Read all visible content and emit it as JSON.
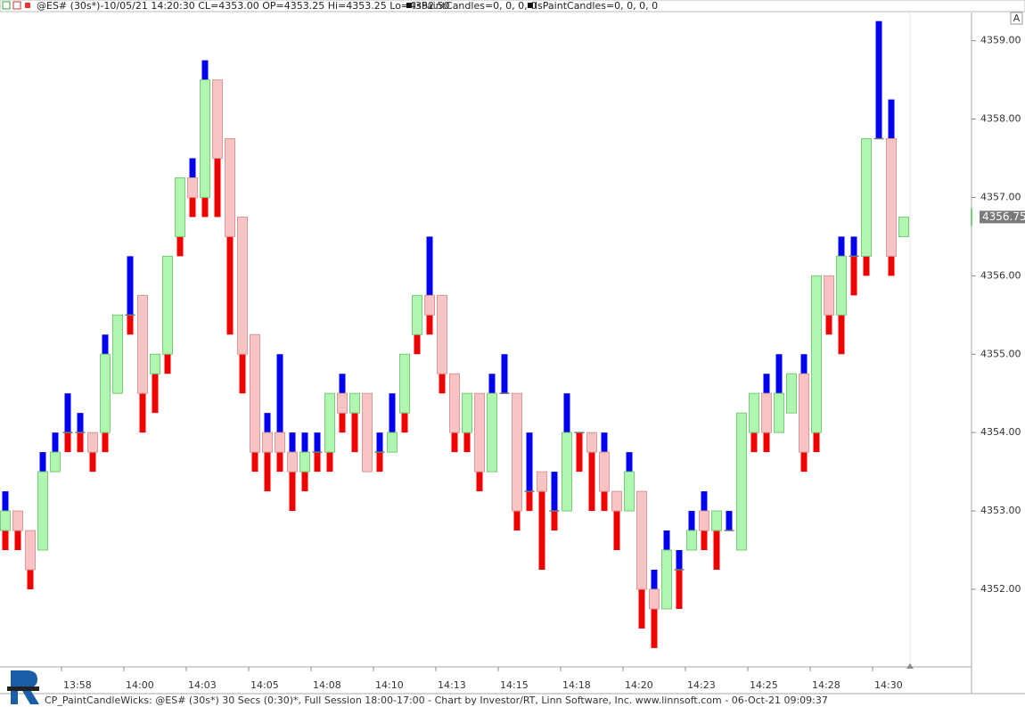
{
  "chart_data": {
    "type": "candlestick",
    "header": {
      "symbol_info": "@ES# (30s*)-10/05/21 14:20:30 CL=4353.00 OP=4353.25 Hi=4353.25 Lo=4352.50",
      "indicators": [
        "lsPaintCandles=0, 0, 0, 0",
        "lsPaintCandles=0, 0, 0, 0"
      ]
    },
    "footer": "CP_PaintCandleWicks: @ES# (30s*) 30 Secs (0:30)*, Full Session 18:00-17:00 - Chart by Investor/RT, Linn Software, Inc. www.linnsoft.com - 06-Oct-21 09:09:37",
    "scale_button": "A",
    "categories": [
      null,
      null,
      null,
      null,
      null,
      "13:58",
      null,
      null,
      null,
      null,
      "14:00",
      null,
      null,
      null,
      null,
      "14:03",
      null,
      null,
      null,
      null,
      "14:05",
      null,
      null,
      null,
      null,
      "14:08",
      null,
      null,
      null,
      null,
      "14:10",
      null,
      null,
      null,
      null,
      "14:13",
      null,
      null,
      null,
      null,
      "14:15",
      null,
      null,
      null,
      null,
      "14:18",
      null,
      null,
      null,
      null,
      "14:20",
      null,
      null,
      null,
      null,
      "14:23",
      null,
      null,
      null,
      null,
      "14:25",
      null,
      null,
      null,
      null,
      "14:28",
      null,
      null,
      null,
      null,
      "14:30",
      null,
      null
    ],
    "open": [
      4352.75,
      4353.0,
      4352.75,
      4352.5,
      4353.5,
      4354.0,
      4354.0,
      4354.0,
      4354.0,
      4354.5,
      4355.5,
      4355.75,
      4354.75,
      4355.0,
      4356.5,
      4357.25,
      4357.0,
      4358.5,
      4357.75,
      4356.75,
      4355.25,
      4354.0,
      4354.0,
      4353.75,
      4353.5,
      4353.75,
      4353.75,
      4354.5,
      4354.25,
      4354.5,
      4353.75,
      4353.75,
      4354.25,
      4355.25,
      4355.75,
      4355.75,
      4354.75,
      4354.0,
      4354.5,
      4353.5,
      4354.5,
      4354.5,
      4353.25,
      4353.5,
      4353.0,
      4353.0,
      4354.0,
      4354.0,
      4353.75,
      4353.25,
      4353.0,
      4353.25,
      4352.0,
      4351.75,
      4352.25,
      4352.5,
      4353.0,
      4352.75,
      4352.75,
      4352.5,
      4354.0,
      4354.5,
      4354.0,
      4354.25,
      4354.75,
      4354.0,
      4356.0,
      4355.5,
      4356.25,
      4356.25,
      4357.75,
      4357.75,
      4356.5
    ],
    "high": [
      4353.25,
      4353.0,
      4352.75,
      4353.75,
      4354.0,
      4354.5,
      4354.25,
      4354.0,
      4355.25,
      4355.5,
      4356.25,
      4355.75,
      4355.0,
      4356.25,
      4357.25,
      4357.5,
      4358.75,
      4358.5,
      4357.75,
      4356.75,
      4355.25,
      4354.25,
      4355.0,
      4354.0,
      4354.0,
      4354.0,
      4354.5,
      4354.75,
      4354.5,
      4354.5,
      4354.0,
      4354.5,
      4355.0,
      4355.75,
      4356.5,
      4355.75,
      4354.75,
      4354.5,
      4354.5,
      4354.75,
      4355.0,
      4354.5,
      4354.0,
      4353.5,
      4353.5,
      4354.5,
      4354.0,
      4354.0,
      4354.0,
      4353.25,
      4353.75,
      4353.25,
      4352.25,
      4352.75,
      4352.5,
      4353.0,
      4353.25,
      4353.0,
      4353.0,
      4354.25,
      4354.5,
      4354.75,
      4355.0,
      4354.75,
      4355.0,
      4356.0,
      4356.0,
      4356.5,
      4356.5,
      4357.75,
      4359.25,
      4358.25,
      4356.75
    ],
    "low": [
      4352.5,
      4352.5,
      4352.0,
      4352.5,
      4353.5,
      4353.75,
      4353.75,
      4353.5,
      4353.75,
      4354.5,
      4355.25,
      4354.0,
      4354.25,
      4354.75,
      4356.25,
      4356.75,
      4356.75,
      4356.75,
      4355.25,
      4354.5,
      4353.5,
      4353.25,
      4353.5,
      4353.0,
      4353.25,
      4353.5,
      4353.5,
      4354.0,
      4353.75,
      4353.5,
      4353.5,
      4353.75,
      4354.0,
      4355.0,
      4355.25,
      4354.5,
      4353.75,
      4353.75,
      4353.25,
      4353.5,
      4354.5,
      4352.75,
      4353.0,
      4352.25,
      4352.75,
      4353.0,
      4353.5,
      4353.0,
      4353.0,
      4352.5,
      4353.0,
      4351.5,
      4351.25,
      4351.75,
      4351.75,
      4352.5,
      4352.5,
      4352.25,
      4352.75,
      4352.5,
      4353.75,
      4353.75,
      4354.0,
      4354.25,
      4353.5,
      4353.75,
      4355.25,
      4355.0,
      4355.75,
      4356.0,
      4357.75,
      4356.0,
      4356.5
    ],
    "close": [
      4353.0,
      4352.75,
      4352.25,
      4353.5,
      4353.75,
      4354.0,
      4354.0,
      4353.75,
      4355.0,
      4355.5,
      4355.5,
      4354.5,
      4355.0,
      4356.25,
      4357.25,
      4357.0,
      4358.5,
      4357.5,
      4356.5,
      4355.0,
      4353.75,
      4353.75,
      4353.75,
      4353.5,
      4353.75,
      4353.75,
      4354.5,
      4354.25,
      4354.5,
      4353.5,
      4353.75,
      4354.0,
      4355.0,
      4355.75,
      4355.5,
      4354.75,
      4354.0,
      4354.5,
      4353.5,
      4354.5,
      4354.5,
      4353.0,
      4353.25,
      4353.25,
      4353.0,
      4354.0,
      4354.0,
      4353.75,
      4353.25,
      4353.0,
      4353.5,
      4352.0,
      4351.75,
      4352.5,
      4352.25,
      4352.75,
      4352.75,
      4353.0,
      4352.75,
      4354.25,
      4354.5,
      4354.0,
      4354.5,
      4354.75,
      4353.75,
      4356.0,
      4355.5,
      4356.25,
      4356.25,
      4357.75,
      4357.75,
      4356.25,
      4356.75
    ],
    "colors": {
      "up_body": "#b0f5b0",
      "up_border": "#7acb7a",
      "down_body": "#f7c3c3",
      "down_border": "#d89a9a",
      "upper_wick": "#0000f0",
      "lower_wick": "#f00000",
      "doji": "#777777"
    },
    "last_price": 4356.75,
    "ylim": [
      4351.01,
      4359.36
    ],
    "yticks": [
      {
        "value": 4352,
        "label": "4352.00"
      },
      {
        "value": 4353,
        "label": "4353.00"
      },
      {
        "value": 4354,
        "label": "4354.00"
      },
      {
        "value": 4355,
        "label": "4355.00"
      },
      {
        "value": 4356,
        "label": "4356.00"
      },
      {
        "value": 4357,
        "label": "4357.00"
      },
      {
        "value": 4358,
        "label": "4358.00"
      },
      {
        "value": 4359,
        "label": "4359.00"
      }
    ],
    "y_axis_side": "right",
    "grid": false
  }
}
